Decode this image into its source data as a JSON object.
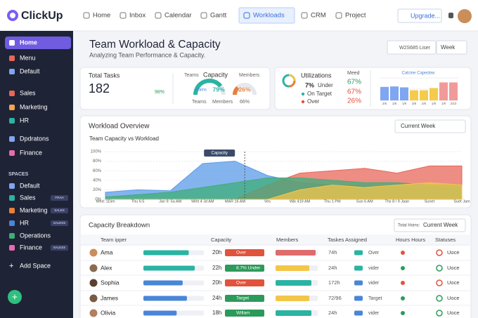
{
  "sidebar": {
    "logo": "ClickUp",
    "items": [
      "Home",
      "Menu",
      "Default",
      "Sales",
      "Marketing",
      "HR",
      "Dpdratons",
      "Finance"
    ],
    "spaces_title": "SPACES",
    "spaces": [
      {
        "name": "Default"
      },
      {
        "name": "Sales",
        "tag": "FRAH"
      },
      {
        "name": "Marketing",
        "tag": "SALES"
      },
      {
        "name": "HR",
        "tag": "SALESS"
      },
      {
        "name": "Operations"
      },
      {
        "name": "Finance",
        "tag": "SALESS"
      }
    ],
    "add_space": "Add Space"
  },
  "topnav": {
    "tabs": [
      "Home",
      "Inbox",
      "Calendar",
      "Gantt",
      "Workloads",
      "CRM",
      "Project"
    ],
    "upgrade": "Upgrade..."
  },
  "header": {
    "title": "Team Workload & Capacity",
    "subtitle": "Analyzing Team Performance & Capacity.",
    "filter": "W2S685 Liser",
    "period": "Week"
  },
  "total_tasks": {
    "label": "Total Tasks",
    "value": "182",
    "change": "98%"
  },
  "capacity_card": {
    "teams": "Teams",
    "title": "Capacity",
    "members": "Members",
    "gauges": [
      {
        "label": "Mains",
        "value": 79,
        "value_label": "79%",
        "color": "#2bb3a3"
      },
      {
        "value": 26,
        "value_label": "26%",
        "color": "#e8803a"
      }
    ],
    "footer": [
      "Teams",
      "Members",
      "66%"
    ]
  },
  "utilization": {
    "title": "Utilizations",
    "rows": [
      {
        "value": "7%",
        "label": "Under",
        "color": "#333"
      },
      {
        "label": "On Target",
        "color": "#2bb3a3"
      },
      {
        "label": "Over",
        "color": "#e0533d"
      }
    ],
    "col_title": "Meed",
    "col_values": [
      {
        "text": "67%",
        "color": "#2c9a5a"
      },
      {
        "text": "67%",
        "color": "#e0533d"
      },
      {
        "text": "26%",
        "color": "#e0533d"
      }
    ]
  },
  "mini_chart": {
    "type": "bar",
    "title": "Calcine Capedow",
    "categories": [
      "2/6",
      "1/8",
      "1/9",
      "3/8",
      "2/6",
      "1/8",
      "1/9",
      "2/10"
    ],
    "values": [
      60,
      62,
      58,
      45,
      45,
      55,
      80,
      80
    ],
    "colors": [
      "#7fa6f0",
      "#7fa6f0",
      "#7fa6f0",
      "#f5cc4a",
      "#f5cc4a",
      "#f5cc4a",
      "#f29a9a",
      "#f29a9a"
    ],
    "ylim": [
      0,
      100
    ]
  },
  "chart_data": {
    "type": "area",
    "title": "Workload Overview",
    "subtitle": "Team Capacity vs Workload",
    "dropdown": "Current Week",
    "annotation": "Capacity",
    "categories": [
      "Wed: 1Dim",
      "Thu 6:5",
      "Jan 9: 5a AM",
      "Wiht 4 Jd AM",
      "MAR 16 AM",
      "Ves",
      "Wik 419 AM",
      "Thu 1 PM",
      "Sun 6 AM",
      "Ths 8 / 9 Jaan",
      "Sunet",
      "Suet Jam"
    ],
    "series": [
      {
        "color": "#5b9be8",
        "values": [
          15,
          20,
          18,
          75,
          80,
          50,
          35,
          30,
          28,
          25,
          25,
          20
        ]
      },
      {
        "color": "#e8675a",
        "values": [
          0,
          0,
          0,
          0,
          0,
          30,
          55,
          60,
          65,
          55,
          70,
          70
        ]
      },
      {
        "color": "#3fae7a",
        "values": [
          5,
          10,
          15,
          25,
          35,
          45,
          45,
          40,
          35,
          35,
          30,
          30
        ]
      },
      {
        "color": "#f3c64a",
        "values": [
          0,
          0,
          0,
          0,
          0,
          0,
          20,
          30,
          25,
          30,
          35,
          30
        ]
      }
    ],
    "ylim": [
      0,
      100
    ],
    "yticks": [
      {
        "value": 0,
        "label": "0%"
      },
      {
        "value": 20,
        "label": "20%"
      },
      {
        "value": 40,
        "label": "40%"
      },
      {
        "value": 60,
        "label": "60%"
      },
      {
        "value": 80,
        "label": "80%"
      },
      {
        "value": 100,
        "label": "100%"
      }
    ],
    "grid": true
  },
  "table": {
    "title": "Capacity Breakdown",
    "filter_label": "Total Hoins:",
    "filter": "Current Week",
    "columns": [
      "Team ipper",
      "Capacity",
      "Members",
      "Taskes Assigned",
      "Hours Hours",
      "Statuses"
    ],
    "rows": [
      {
        "name": "Ama",
        "capacity_bar": 75,
        "bar_color": "#2bb3a3",
        "hours": "20h",
        "status": "Over",
        "status_color": "#e0533d",
        "members_bar": 95,
        "members_color": "#e06b6b",
        "tasks": "74h",
        "tasks_tag": "Over",
        "state": "Uoce"
      },
      {
        "name": "Alex",
        "capacity_bar": 85,
        "bar_color": "#2bb3a3",
        "hours": "22h",
        "status": "8.7% Under",
        "status_color": "#2c9a5a",
        "members_bar": 80,
        "members_color": "#f3c64a",
        "tasks": "24h",
        "tasks_tag": "vider",
        "state": "Uoce"
      },
      {
        "name": "Sophia",
        "capacity_bar": 65,
        "bar_color": "#4a86d8",
        "hours": "20h",
        "status": "Over",
        "status_color": "#e0533d",
        "members_bar": 85,
        "members_color": "#2bb3a3",
        "tasks": "172h",
        "tasks_tag": "vider",
        "state": "Uoce"
      },
      {
        "name": "James",
        "capacity_bar": 72,
        "bar_color": "#4a86d8",
        "hours": "24h",
        "status": "Target",
        "status_color": "#2c9a5a",
        "members_bar": 80,
        "members_color": "#f3c64a",
        "tasks": "72/96",
        "tasks_tag": "Target",
        "state": "Uoce"
      },
      {
        "name": "Olivia",
        "capacity_bar": 55,
        "bar_color": "#4a86d8",
        "hours": "18h",
        "status": "Willam",
        "status_color": "#2c9a5a",
        "members_bar": 85,
        "members_color": "#2bb3a3",
        "tasks": "24h",
        "tasks_tag": "vider",
        "state": "Uoce"
      }
    ]
  }
}
